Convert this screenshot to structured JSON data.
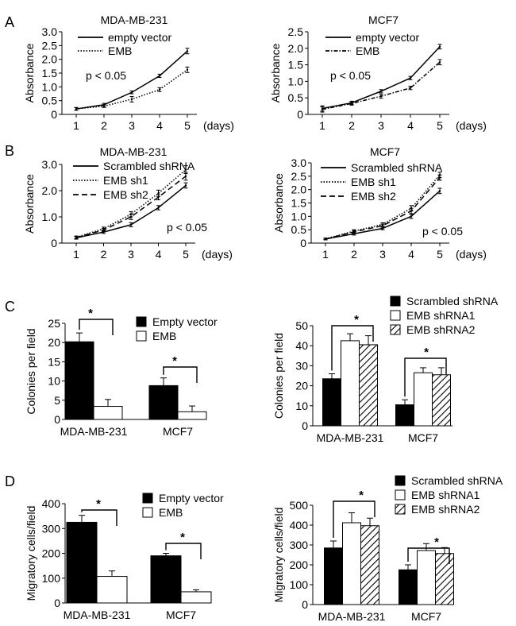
{
  "panel_letters": [
    "A",
    "B",
    "C",
    "D"
  ],
  "chart_data": [
    {
      "id": "A1",
      "type": "line",
      "title": "MDA-MB-231",
      "ylabel": "Absorbance",
      "xlabel": "",
      "x_unit": "(days)",
      "x": [
        1,
        2,
        3,
        4,
        5
      ],
      "ylim": [
        0,
        3.0
      ],
      "yticks": [
        "0",
        "0.5",
        "1.0",
        "1.5",
        "2.0",
        "2.5",
        "3.0"
      ],
      "annotation": "p < 0.05",
      "series": [
        {
          "name": "empty vector",
          "style": "solid",
          "values": [
            0.2,
            0.35,
            0.8,
            1.4,
            2.3
          ],
          "errors": [
            0.05,
            0.05,
            0.05,
            0.06,
            0.1
          ]
        },
        {
          "name": "EMB",
          "style": "dotted",
          "values": [
            0.2,
            0.3,
            0.55,
            0.9,
            1.62
          ],
          "errors": [
            0.05,
            0.05,
            0.1,
            0.07,
            0.1
          ]
        }
      ]
    },
    {
      "id": "A2",
      "type": "line",
      "title": "MCF7",
      "ylabel": "Absorbance",
      "xlabel": "",
      "x_unit": "(days)",
      "x": [
        1,
        2,
        3,
        4,
        5
      ],
      "ylim": [
        0,
        2.5
      ],
      "yticks": [
        "0",
        "0.5",
        "1.0",
        "1.5",
        "2.0",
        "2.5"
      ],
      "annotation": "p < 0.05",
      "series": [
        {
          "name": "empty vector",
          "style": "solid",
          "values": [
            0.18,
            0.35,
            0.7,
            1.1,
            2.05
          ],
          "errors": [
            0.08,
            0.05,
            0.05,
            0.05,
            0.07
          ]
        },
        {
          "name": "EMB",
          "style": "dashdot",
          "values": [
            0.15,
            0.33,
            0.55,
            0.8,
            1.58
          ],
          "errors": [
            0.08,
            0.05,
            0.06,
            0.05,
            0.08
          ]
        }
      ]
    },
    {
      "id": "B1",
      "type": "line",
      "title": "MDA-MB-231",
      "ylabel": "Absorbance",
      "xlabel": "",
      "x_unit": "(days)",
      "x": [
        1,
        2,
        3,
        4,
        5
      ],
      "ylim": [
        0,
        3.0
      ],
      "yticks": [
        "0",
        "1.0",
        "2.0",
        "3.0"
      ],
      "annotation": "p < 0.05",
      "series": [
        {
          "name": "Scrambled shRNA",
          "style": "solid",
          "values": [
            0.2,
            0.42,
            0.7,
            1.35,
            2.2
          ],
          "errors": [
            0.05,
            0.05,
            0.08,
            0.08,
            0.1
          ]
        },
        {
          "name": "EMB sh1",
          "style": "dotted",
          "values": [
            0.22,
            0.55,
            1.1,
            1.9,
            2.8
          ],
          "errors": [
            0.05,
            0.06,
            0.1,
            0.12,
            0.15
          ]
        },
        {
          "name": "EMB sh2",
          "style": "dashed",
          "values": [
            0.21,
            0.5,
            1.0,
            1.75,
            2.55
          ],
          "errors": [
            0.05,
            0.06,
            0.1,
            0.1,
            0.15
          ]
        }
      ]
    },
    {
      "id": "B2",
      "type": "line",
      "title": "MCF7",
      "ylabel": "Absorbance",
      "xlabel": "",
      "x_unit": "(days)",
      "x": [
        1,
        2,
        3,
        4,
        5
      ],
      "ylim": [
        0,
        3.0
      ],
      "yticks": [
        "0",
        "0.5",
        "1.0",
        "1.5",
        "2.0",
        "2.5",
        "3.0"
      ],
      "annotation": "p < 0.05",
      "series": [
        {
          "name": "Scrambled shRNA",
          "style": "solid",
          "values": [
            0.15,
            0.35,
            0.55,
            1.0,
            1.95
          ],
          "errors": [
            0.03,
            0.05,
            0.05,
            0.08,
            0.1
          ]
        },
        {
          "name": "EMB sh1",
          "style": "dotted",
          "values": [
            0.16,
            0.45,
            0.7,
            1.3,
            2.55
          ],
          "errors": [
            0.03,
            0.05,
            0.06,
            0.1,
            0.1
          ]
        },
        {
          "name": "EMB sh2",
          "style": "dashed",
          "values": [
            0.15,
            0.42,
            0.65,
            1.2,
            2.45
          ],
          "errors": [
            0.03,
            0.05,
            0.06,
            0.1,
            0.1
          ]
        }
      ]
    },
    {
      "id": "C1",
      "type": "bar",
      "title": "",
      "ylabel": "Colonies per field",
      "categories": [
        "MDA-MB-231",
        "MCF7"
      ],
      "ylim": [
        0,
        25
      ],
      "yticks": [
        "0",
        "5",
        "10",
        "15",
        "20",
        "25"
      ],
      "significance_mark": "*",
      "series": [
        {
          "name": "Empty vector",
          "fill": "black",
          "values": [
            20.2,
            8.8
          ],
          "errors": [
            2.3,
            2.0
          ]
        },
        {
          "name": "EMB",
          "fill": "white",
          "values": [
            3.4,
            2.0
          ],
          "errors": [
            1.8,
            1.5
          ]
        }
      ]
    },
    {
      "id": "C2",
      "type": "bar",
      "title": "",
      "ylabel": "Colonies per field",
      "categories": [
        "MDA-MB-231",
        "MCF7"
      ],
      "ylim": [
        0,
        50
      ],
      "yticks": [
        "0",
        "10",
        "20",
        "30",
        "40",
        "50"
      ],
      "significance_mark": "*",
      "series": [
        {
          "name": "Scrambled shRNA",
          "fill": "black",
          "values": [
            23.5,
            10.5
          ],
          "errors": [
            2.5,
            2.5
          ]
        },
        {
          "name": "EMB shRNA1",
          "fill": "white",
          "values": [
            42.5,
            26.5
          ],
          "errors": [
            3.5,
            2.5
          ]
        },
        {
          "name": "EMB shRNA2",
          "fill": "hatch",
          "values": [
            40.5,
            25.5
          ],
          "errors": [
            4.5,
            3.5
          ]
        }
      ]
    },
    {
      "id": "D1",
      "type": "bar",
      "title": "",
      "ylabel": "Migratory cells/field",
      "categories": [
        "MDA-MB-231",
        "MCF7"
      ],
      "ylim": [
        0,
        400
      ],
      "yticks": [
        "0",
        "100",
        "200",
        "300",
        "400"
      ],
      "significance_mark": "*",
      "series": [
        {
          "name": "Empty vector",
          "fill": "black",
          "values": [
            325,
            190
          ],
          "errors": [
            28,
            10
          ]
        },
        {
          "name": "EMB",
          "fill": "white",
          "values": [
            107,
            45
          ],
          "errors": [
            22,
            8
          ]
        }
      ]
    },
    {
      "id": "D2",
      "type": "bar",
      "title": "",
      "ylabel": "Migratory cells/field",
      "categories": [
        "MDA-MB-231",
        "MCF7"
      ],
      "ylim": [
        0,
        500
      ],
      "yticks": [
        "0",
        "100",
        "200",
        "300",
        "400",
        "500"
      ],
      "significance_mark": "*",
      "series": [
        {
          "name": "Scrambled shRNA",
          "fill": "black",
          "values": [
            285,
            175
          ],
          "errors": [
            35,
            25
          ]
        },
        {
          "name": "EMB shRNA1",
          "fill": "white",
          "values": [
            412,
            272
          ],
          "errors": [
            50,
            35
          ]
        },
        {
          "name": "EMB shRNA2",
          "fill": "hatch",
          "values": [
            397,
            257
          ],
          "errors": [
            38,
            30
          ]
        }
      ]
    }
  ]
}
